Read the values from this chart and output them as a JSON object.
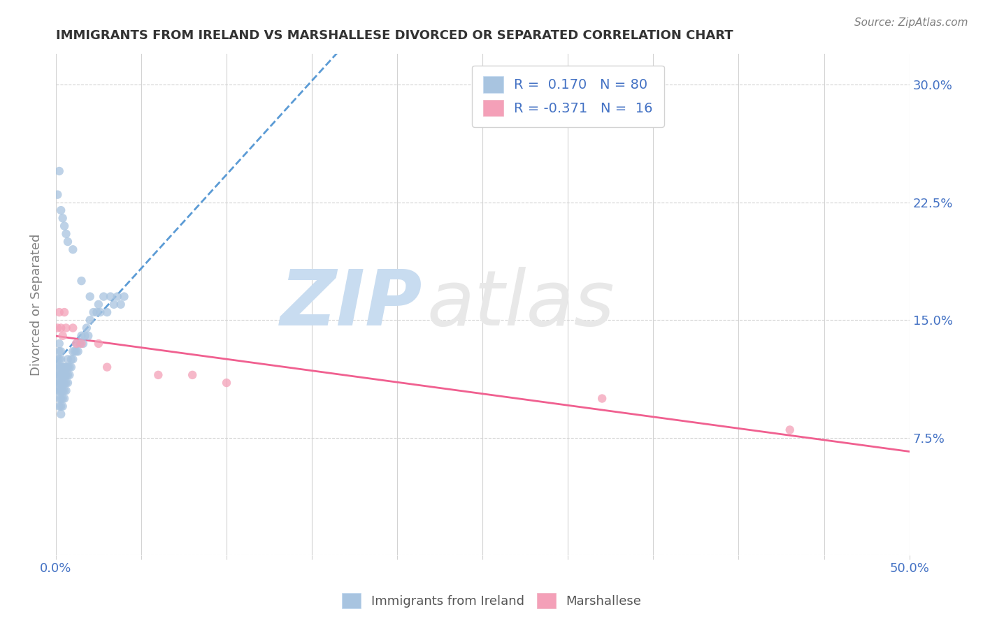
{
  "title": "IMMIGRANTS FROM IRELAND VS MARSHALLESE DIVORCED OR SEPARATED CORRELATION CHART",
  "source_text": "Source: ZipAtlas.com",
  "ylabel": "Divorced or Separated",
  "xlim": [
    0.0,
    0.5
  ],
  "ylim": [
    0.0,
    0.32
  ],
  "xticks": [
    0.0,
    0.05,
    0.1,
    0.15,
    0.2,
    0.25,
    0.3,
    0.35,
    0.4,
    0.45,
    0.5
  ],
  "yticks": [
    0.0,
    0.075,
    0.15,
    0.225,
    0.3
  ],
  "yticklabels": [
    "",
    "7.5%",
    "15.0%",
    "22.5%",
    "30.0%"
  ],
  "color_blue": "#a8c4e0",
  "color_pink": "#f4a0b8",
  "color_line_blue": "#5b9bd5",
  "color_line_pink": "#f06090",
  "color_text_blue": "#4472c4",
  "watermark_zip": "ZIP",
  "watermark_atlas": "atlas",
  "watermark_color": "#ddeeff",
  "ireland_r": 0.17,
  "ireland_n": 80,
  "marsh_r": -0.371,
  "marsh_n": 16,
  "ireland_x": [
    0.001,
    0.001,
    0.001,
    0.001,
    0.001,
    0.002,
    0.002,
    0.002,
    0.002,
    0.002,
    0.002,
    0.002,
    0.002,
    0.002,
    0.003,
    0.003,
    0.003,
    0.003,
    0.003,
    0.003,
    0.003,
    0.003,
    0.003,
    0.004,
    0.004,
    0.004,
    0.004,
    0.004,
    0.004,
    0.005,
    0.005,
    0.005,
    0.005,
    0.005,
    0.006,
    0.006,
    0.006,
    0.006,
    0.007,
    0.007,
    0.007,
    0.007,
    0.008,
    0.008,
    0.009,
    0.009,
    0.01,
    0.01,
    0.011,
    0.012,
    0.012,
    0.013,
    0.014,
    0.015,
    0.016,
    0.017,
    0.018,
    0.019,
    0.02,
    0.022,
    0.024,
    0.025,
    0.026,
    0.028,
    0.03,
    0.032,
    0.034,
    0.036,
    0.038,
    0.04,
    0.001,
    0.002,
    0.003,
    0.004,
    0.005,
    0.006,
    0.007,
    0.01,
    0.015,
    0.02
  ],
  "ireland_y": [
    0.105,
    0.11,
    0.115,
    0.12,
    0.125,
    0.095,
    0.1,
    0.105,
    0.11,
    0.115,
    0.12,
    0.125,
    0.13,
    0.135,
    0.09,
    0.095,
    0.1,
    0.105,
    0.11,
    0.115,
    0.12,
    0.125,
    0.13,
    0.095,
    0.1,
    0.105,
    0.11,
    0.115,
    0.12,
    0.1,
    0.105,
    0.11,
    0.115,
    0.12,
    0.105,
    0.11,
    0.115,
    0.12,
    0.11,
    0.115,
    0.12,
    0.125,
    0.115,
    0.12,
    0.12,
    0.125,
    0.13,
    0.125,
    0.13,
    0.13,
    0.135,
    0.13,
    0.135,
    0.14,
    0.135,
    0.14,
    0.145,
    0.14,
    0.15,
    0.155,
    0.155,
    0.16,
    0.155,
    0.165,
    0.155,
    0.165,
    0.16,
    0.165,
    0.16,
    0.165,
    0.23,
    0.245,
    0.22,
    0.215,
    0.21,
    0.205,
    0.2,
    0.195,
    0.175,
    0.165
  ],
  "marsh_x": [
    0.001,
    0.002,
    0.003,
    0.004,
    0.005,
    0.006,
    0.01,
    0.012,
    0.015,
    0.025,
    0.03,
    0.06,
    0.08,
    0.1,
    0.32,
    0.43
  ],
  "marsh_y": [
    0.145,
    0.155,
    0.145,
    0.14,
    0.155,
    0.145,
    0.145,
    0.135,
    0.135,
    0.135,
    0.12,
    0.115,
    0.115,
    0.11,
    0.1,
    0.08
  ]
}
